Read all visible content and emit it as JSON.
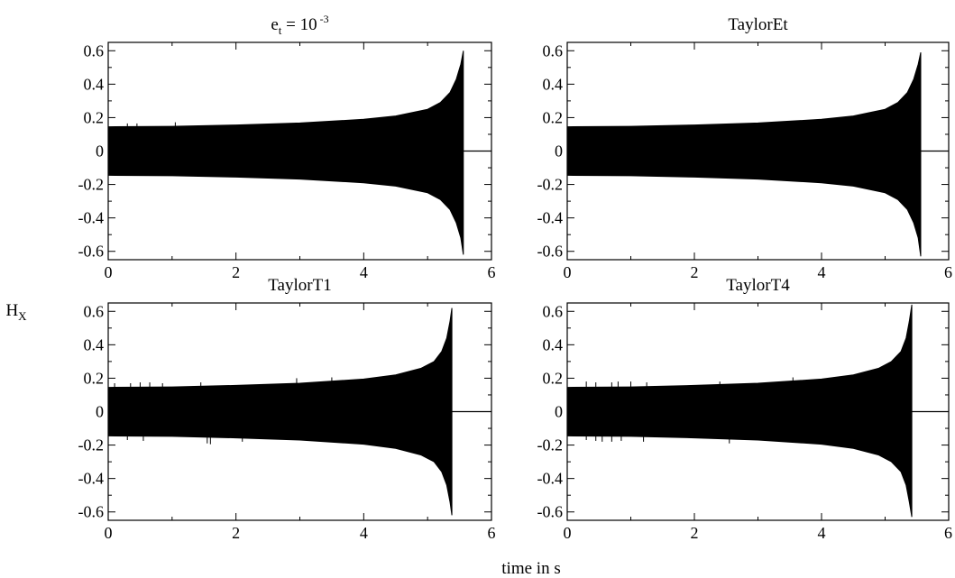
{
  "figure": {
    "ylabel_main": "H",
    "ylabel_sub": "X",
    "xlabel": "time in s"
  },
  "chart_data": [
    {
      "type": "line",
      "title": {
        "base": "e",
        "sub": "t",
        "mid": " = 10",
        "sup": " -3"
      },
      "xlim": [
        0,
        6
      ],
      "ylim": [
        -0.65,
        0.65
      ],
      "xticks": [
        0,
        2,
        4,
        6
      ],
      "yticks": [
        -0.6,
        -0.4,
        -0.2,
        0,
        0.2,
        0.4,
        0.6
      ],
      "xtick_labels": [
        "0",
        "2",
        "4",
        "6"
      ],
      "ytick_labels": [
        "-0.6",
        "-0.4",
        "-0.2",
        "0",
        "0.2",
        "0.4",
        "0.6"
      ],
      "grid": false,
      "series": [
        {
          "envelope_upper": [
            [
              0,
              0.145
            ],
            [
              1,
              0.148
            ],
            [
              2,
              0.156
            ],
            [
              3,
              0.168
            ],
            [
              4,
              0.19
            ],
            [
              4.5,
              0.21
            ],
            [
              5,
              0.25
            ],
            [
              5.2,
              0.29
            ],
            [
              5.35,
              0.35
            ],
            [
              5.45,
              0.43
            ],
            [
              5.52,
              0.52
            ],
            [
              5.56,
              0.6
            ]
          ],
          "envelope_lower": [
            [
              0,
              -0.145
            ],
            [
              1,
              -0.148
            ],
            [
              2,
              -0.156
            ],
            [
              3,
              -0.168
            ],
            [
              4,
              -0.19
            ],
            [
              4.5,
              -0.21
            ],
            [
              5,
              -0.25
            ],
            [
              5.2,
              -0.29
            ],
            [
              5.35,
              -0.35
            ],
            [
              5.45,
              -0.43
            ],
            [
              5.52,
              -0.52
            ],
            [
              5.56,
              -0.62
            ]
          ],
          "merger_time": 5.56,
          "ringdown_value": 0,
          "ringdown_end": 6,
          "spikes": [
            [
              0.3,
              0.165
            ],
            [
              0.45,
              0.165
            ],
            [
              1.05,
              0.172
            ]
          ]
        }
      ]
    },
    {
      "type": "line",
      "title": {
        "base": "TaylorEt"
      },
      "xlim": [
        0,
        6
      ],
      "ylim": [
        -0.65,
        0.65
      ],
      "xticks": [
        0,
        2,
        4,
        6
      ],
      "yticks": [
        -0.6,
        -0.4,
        -0.2,
        0,
        0.2,
        0.4,
        0.6
      ],
      "xtick_labels": [
        "0",
        "2",
        "4",
        "6"
      ],
      "ytick_labels": [
        "-0.6",
        "-0.4",
        "-0.2",
        "0",
        "0.2",
        "0.4",
        "0.6"
      ],
      "grid": false,
      "series": [
        {
          "envelope_upper": [
            [
              0,
              0.145
            ],
            [
              1,
              0.148
            ],
            [
              2,
              0.156
            ],
            [
              3,
              0.168
            ],
            [
              4,
              0.19
            ],
            [
              4.5,
              0.21
            ],
            [
              5,
              0.25
            ],
            [
              5.2,
              0.29
            ],
            [
              5.35,
              0.35
            ],
            [
              5.45,
              0.43
            ],
            [
              5.52,
              0.52
            ],
            [
              5.56,
              0.59
            ]
          ],
          "envelope_lower": [
            [
              0,
              -0.145
            ],
            [
              1,
              -0.148
            ],
            [
              2,
              -0.156
            ],
            [
              3,
              -0.168
            ],
            [
              4,
              -0.19
            ],
            [
              4.5,
              -0.21
            ],
            [
              5,
              -0.25
            ],
            [
              5.2,
              -0.29
            ],
            [
              5.35,
              -0.35
            ],
            [
              5.45,
              -0.43
            ],
            [
              5.52,
              -0.52
            ],
            [
              5.56,
              -0.63
            ]
          ],
          "merger_time": 5.56,
          "ringdown_value": 0,
          "ringdown_end": 6,
          "spikes": []
        }
      ]
    },
    {
      "type": "line",
      "title": {
        "base": "TaylorT1"
      },
      "xlim": [
        0,
        6
      ],
      "ylim": [
        -0.65,
        0.65
      ],
      "xticks": [
        0,
        2,
        4,
        6
      ],
      "yticks": [
        -0.6,
        -0.4,
        -0.2,
        0,
        0.2,
        0.4,
        0.6
      ],
      "xtick_labels": [
        "0",
        "2",
        "4",
        "6"
      ],
      "ytick_labels": [
        "-0.6",
        "-0.4",
        "-0.2",
        "0",
        "0.2",
        "0.4",
        "0.6"
      ],
      "grid": false,
      "series": [
        {
          "envelope_upper": [
            [
              0,
              0.145
            ],
            [
              1,
              0.148
            ],
            [
              2,
              0.157
            ],
            [
              3,
              0.17
            ],
            [
              4,
              0.195
            ],
            [
              4.5,
              0.22
            ],
            [
              4.9,
              0.26
            ],
            [
              5.1,
              0.3
            ],
            [
              5.22,
              0.36
            ],
            [
              5.3,
              0.44
            ],
            [
              5.35,
              0.54
            ],
            [
              5.38,
              0.62
            ]
          ],
          "envelope_lower": [
            [
              0,
              -0.145
            ],
            [
              1,
              -0.148
            ],
            [
              2,
              -0.157
            ],
            [
              3,
              -0.17
            ],
            [
              4,
              -0.195
            ],
            [
              4.5,
              -0.22
            ],
            [
              4.9,
              -0.26
            ],
            [
              5.1,
              -0.3
            ],
            [
              5.22,
              -0.36
            ],
            [
              5.3,
              -0.44
            ],
            [
              5.35,
              -0.54
            ],
            [
              5.38,
              -0.62
            ]
          ],
          "merger_time": 5.38,
          "ringdown_value": 0,
          "ringdown_end": 6,
          "spikes": [
            [
              0.1,
              0.17
            ],
            [
              0.35,
              0.17
            ],
            [
              0.5,
              0.175
            ],
            [
              0.65,
              0.175
            ],
            [
              0.85,
              0.17
            ],
            [
              1.45,
              0.175
            ],
            [
              2.95,
              0.2
            ],
            [
              3.5,
              0.205
            ],
            [
              0.3,
              -0.17
            ],
            [
              0.55,
              -0.175
            ],
            [
              1.55,
              -0.19
            ],
            [
              1.6,
              -0.195
            ],
            [
              2.1,
              -0.18
            ]
          ]
        }
      ]
    },
    {
      "type": "line",
      "title": {
        "base": "TaylorT4"
      },
      "xlim": [
        0,
        6
      ],
      "ylim": [
        -0.65,
        0.65
      ],
      "xticks": [
        0,
        2,
        4,
        6
      ],
      "yticks": [
        -0.6,
        -0.4,
        -0.2,
        0,
        0.2,
        0.4,
        0.6
      ],
      "xtick_labels": [
        "0",
        "2",
        "4",
        "6"
      ],
      "ytick_labels": [
        "-0.6",
        "-0.4",
        "-0.2",
        "0",
        "0.2",
        "0.4",
        "0.6"
      ],
      "grid": false,
      "series": [
        {
          "envelope_upper": [
            [
              0,
              0.145
            ],
            [
              1,
              0.148
            ],
            [
              2,
              0.157
            ],
            [
              3,
              0.17
            ],
            [
              4,
              0.195
            ],
            [
              4.5,
              0.22
            ],
            [
              4.9,
              0.26
            ],
            [
              5.1,
              0.3
            ],
            [
              5.25,
              0.36
            ],
            [
              5.33,
              0.44
            ],
            [
              5.38,
              0.54
            ],
            [
              5.42,
              0.64
            ]
          ],
          "envelope_lower": [
            [
              0,
              -0.145
            ],
            [
              1,
              -0.148
            ],
            [
              2,
              -0.157
            ],
            [
              3,
              -0.17
            ],
            [
              4,
              -0.195
            ],
            [
              4.5,
              -0.22
            ],
            [
              4.9,
              -0.26
            ],
            [
              5.1,
              -0.3
            ],
            [
              5.25,
              -0.36
            ],
            [
              5.33,
              -0.44
            ],
            [
              5.38,
              -0.54
            ],
            [
              5.42,
              -0.63
            ]
          ],
          "merger_time": 5.42,
          "ringdown_value": 0,
          "ringdown_end": 6,
          "spikes": [
            [
              0.3,
              0.18
            ],
            [
              0.45,
              0.175
            ],
            [
              0.7,
              0.175
            ],
            [
              0.8,
              0.18
            ],
            [
              1.0,
              0.18
            ],
            [
              1.25,
              0.175
            ],
            [
              2.4,
              0.18
            ],
            [
              3.55,
              0.205
            ],
            [
              0.3,
              -0.17
            ],
            [
              0.45,
              -0.175
            ],
            [
              0.55,
              -0.18
            ],
            [
              0.7,
              -0.18
            ],
            [
              0.85,
              -0.175
            ],
            [
              1.2,
              -0.18
            ],
            [
              2.55,
              -0.19
            ]
          ]
        }
      ]
    }
  ]
}
